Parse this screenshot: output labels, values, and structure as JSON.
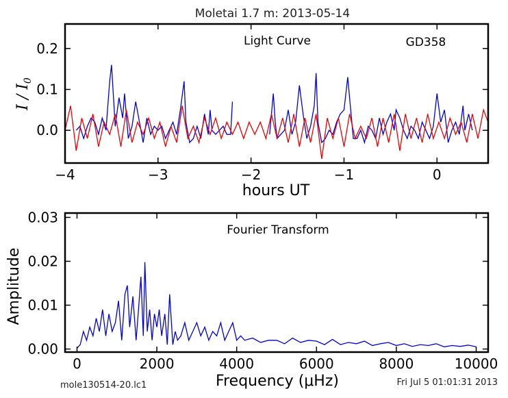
{
  "figure": {
    "title": "Moletai 1.7 m:  2013-05-14",
    "footer_left": "mole130514-20.lc1",
    "footer_right": "Fri Jul  5 01:01:31 2013"
  },
  "chart_data": [
    {
      "type": "line",
      "annotation_left": "Light Curve",
      "annotation_right": "GD358",
      "xlabel": "hours UT",
      "ylabel": "I/I0",
      "xlim": [
        -4.0,
        0.55
      ],
      "ylim": [
        -0.08,
        0.26
      ],
      "xticks": [
        -4,
        -3,
        -2,
        -1,
        0
      ],
      "xtick_labels": [
        "−4",
        "−3",
        "−2",
        "−1",
        "0"
      ],
      "yticks": [
        0.0,
        0.1,
        0.2
      ],
      "ytick_labels": [
        "0.0",
        "0.1",
        "0.2"
      ],
      "grid": false,
      "series": [
        {
          "color": "#0000dd",
          "x": [
            -3.88,
            -3.84,
            -3.8,
            -3.76,
            -3.72,
            -3.68,
            -3.64,
            -3.6,
            -3.56,
            -3.52,
            -3.5,
            -3.46,
            -3.42,
            -3.38,
            -3.36,
            -3.32,
            -3.28,
            -3.24,
            -3.2,
            -3.16,
            -3.12,
            -3.08,
            -3.04,
            -3.0,
            -2.96,
            -2.92,
            -2.88,
            -2.84,
            -2.8,
            -2.76,
            -2.72,
            -2.7,
            -2.66,
            -2.62,
            -2.58,
            -2.54,
            -2.5,
            -2.46,
            -2.44,
            -2.42,
            -2.38,
            -2.34,
            -2.3,
            -2.26,
            -2.22,
            -2.2
          ],
          "y": [
            0.0,
            0.01,
            -0.02,
            0.01,
            0.03,
            0.02,
            -0.01,
            0.03,
            0.0,
            0.12,
            0.16,
            0.01,
            0.08,
            0.03,
            0.09,
            -0.02,
            0.01,
            0.07,
            0.02,
            -0.03,
            0.03,
            -0.01,
            0.01,
            0.0,
            0.01,
            -0.02,
            0.0,
            0.02,
            -0.01,
            0.05,
            0.12,
            0.02,
            -0.03,
            -0.02,
            0.01,
            -0.02,
            0.04,
            -0.01,
            0.05,
            0.0,
            -0.01,
            0.0,
            0.01,
            -0.01,
            -0.01,
            0.07
          ]
        },
        {
          "color": "#0000dd",
          "x": [
            -1.8,
            -1.76,
            -1.74,
            -1.72,
            -1.68,
            -1.64,
            -1.6,
            -1.56,
            -1.52,
            -1.48,
            -1.44,
            -1.4,
            -1.36,
            -1.32,
            -1.3,
            -1.28,
            -1.24,
            -1.2,
            -1.16,
            -1.12,
            -1.08,
            -1.04,
            -1.0,
            -0.96,
            -0.94,
            -0.9,
            -0.86,
            -0.82,
            -0.78,
            -0.74,
            -0.7,
            -0.66,
            -0.62,
            -0.58,
            -0.54,
            -0.5,
            -0.46,
            -0.44,
            -0.4,
            -0.36,
            -0.32,
            -0.28,
            -0.24,
            -0.2,
            -0.16,
            -0.12,
            -0.08,
            -0.04,
            0.0,
            0.04,
            0.08,
            0.12,
            0.16,
            0.2,
            0.24,
            0.28,
            0.3,
            0.34,
            0.38
          ],
          "y": [
            -0.01,
            0.09,
            0.02,
            -0.02,
            -0.01,
            0.0,
            0.05,
            -0.01,
            0.02,
            0.11,
            0.04,
            -0.02,
            0.01,
            0.06,
            0.14,
            0.02,
            -0.03,
            -0.02,
            0.0,
            -0.01,
            0.02,
            0.04,
            0.05,
            0.13,
            0.08,
            -0.02,
            -0.02,
            0.0,
            -0.03,
            0.01,
            0.0,
            -0.02,
            0.03,
            -0.01,
            0.02,
            0.04,
            0.0,
            0.05,
            0.03,
            0.0,
            -0.02,
            0.01,
            0.0,
            -0.02,
            0.02,
            0.0,
            -0.02,
            0.01,
            0.09,
            0.02,
            0.05,
            -0.03,
            0.0,
            0.02,
            -0.01,
            0.06,
            0.0,
            0.04,
            0.0
          ]
        },
        {
          "color": "#ee0000",
          "x": [
            -4.0,
            -3.94,
            -3.88,
            -3.82,
            -3.76,
            -3.7,
            -3.64,
            -3.58,
            -3.52,
            -3.46,
            -3.4,
            -3.34,
            -3.28,
            -3.22,
            -3.16,
            -3.1,
            -3.04,
            -2.98,
            -2.92,
            -2.86,
            -2.8,
            -2.74,
            -2.68,
            -2.62,
            -2.56,
            -2.5,
            -2.44,
            -2.38,
            -2.32,
            -2.26,
            -2.2,
            -2.14,
            -2.08,
            -2.02,
            -1.96,
            -1.9,
            -1.84,
            -1.78,
            -1.72,
            -1.66,
            -1.6,
            -1.54,
            -1.48,
            -1.42,
            -1.36,
            -1.3,
            -1.24,
            -1.18,
            -1.12,
            -1.06,
            -1.0,
            -0.94,
            -0.88,
            -0.82,
            -0.76,
            -0.7,
            -0.64,
            -0.58,
            -0.52,
            -0.46,
            -0.4,
            -0.34,
            -0.28,
            -0.22,
            -0.16,
            -0.1,
            -0.04,
            0.02,
            0.08,
            0.14,
            0.2,
            0.26,
            0.32,
            0.38,
            0.44,
            0.5,
            0.55
          ],
          "y": [
            0.0,
            0.06,
            -0.05,
            0.03,
            -0.02,
            0.04,
            -0.04,
            0.02,
            -0.01,
            0.04,
            -0.04,
            0.05,
            -0.03,
            0.02,
            -0.01,
            0.03,
            -0.02,
            0.02,
            -0.04,
            0.01,
            -0.03,
            0.06,
            -0.02,
            0.01,
            -0.03,
            0.03,
            -0.01,
            0.03,
            -0.02,
            0.02,
            -0.01,
            0.02,
            -0.02,
            0.02,
            -0.01,
            0.02,
            -0.02,
            0.04,
            -0.02,
            0.03,
            -0.03,
            0.04,
            -0.04,
            0.03,
            -0.03,
            0.04,
            -0.07,
            0.03,
            -0.02,
            0.03,
            -0.04,
            0.04,
            -0.02,
            0.01,
            -0.02,
            0.03,
            -0.04,
            0.03,
            -0.03,
            0.04,
            -0.05,
            0.04,
            -0.02,
            0.03,
            -0.03,
            0.04,
            -0.02,
            0.02,
            -0.02,
            0.03,
            -0.01,
            0.02,
            -0.03,
            0.04,
            -0.02,
            0.05,
            0.02
          ]
        }
      ]
    },
    {
      "type": "line",
      "annotation": "Fourier Transform",
      "xlabel": "Frequency (μHz)",
      "ylabel": "Amplitude",
      "xlim": [
        -300,
        10300
      ],
      "ylim": [
        -0.0007,
        0.031
      ],
      "xticks": [
        0,
        2000,
        4000,
        6000,
        8000,
        10000
      ],
      "xtick_labels": [
        "0",
        "2000",
        "4000",
        "6000",
        "8000",
        "10000"
      ],
      "yticks": [
        0.0,
        0.01,
        0.02,
        0.03
      ],
      "ytick_labels": [
        "0.00",
        "0.01",
        "0.02",
        "0.03"
      ],
      "grid": false,
      "series": [
        {
          "color": "#0000dd",
          "x": [
            0,
            80,
            160,
            240,
            320,
            400,
            480,
            560,
            640,
            720,
            800,
            880,
            960,
            1040,
            1120,
            1200,
            1260,
            1320,
            1400,
            1480,
            1540,
            1600,
            1660,
            1700,
            1760,
            1820,
            1880,
            1940,
            2000,
            2060,
            2120,
            2200,
            2260,
            2320,
            2400,
            2460,
            2520,
            2600,
            2700,
            2800,
            2900,
            3000,
            3100,
            3200,
            3300,
            3400,
            3500,
            3600,
            3700,
            3800,
            3900,
            4000,
            4100,
            4200,
            4400,
            4600,
            4800,
            5000,
            5200,
            5400,
            5600,
            5800,
            6000,
            6200,
            6400,
            6600,
            6800,
            7000,
            7200,
            7400,
            7600,
            7800,
            8000,
            8200,
            8400,
            8600,
            8800,
            9000,
            9200,
            9400,
            9600,
            9800,
            10000
          ],
          "y": [
            0.0002,
            0.001,
            0.004,
            0.002,
            0.005,
            0.003,
            0.007,
            0.004,
            0.009,
            0.003,
            0.008,
            0.004,
            0.006,
            0.011,
            0.002,
            0.0125,
            0.0145,
            0.005,
            0.012,
            0.002,
            0.009,
            0.0165,
            0.003,
            0.0198,
            0.004,
            0.009,
            0.002,
            0.008,
            0.005,
            0.009,
            0.003,
            0.008,
            0.001,
            0.0125,
            0.001,
            0.004,
            0.002,
            0.003,
            0.006,
            0.002,
            0.004,
            0.006,
            0.003,
            0.005,
            0.002,
            0.004,
            0.003,
            0.006,
            0.002,
            0.004,
            0.006,
            0.002,
            0.003,
            0.002,
            0.0025,
            0.0015,
            0.002,
            0.002,
            0.0012,
            0.0025,
            0.0015,
            0.002,
            0.0018,
            0.001,
            0.0022,
            0.001,
            0.0015,
            0.0012,
            0.0018,
            0.0008,
            0.0012,
            0.0015,
            0.0008,
            0.0012,
            0.0006,
            0.001,
            0.0008,
            0.0012,
            0.0005,
            0.0008,
            0.0006,
            0.0009,
            0.0005
          ]
        }
      ]
    }
  ]
}
